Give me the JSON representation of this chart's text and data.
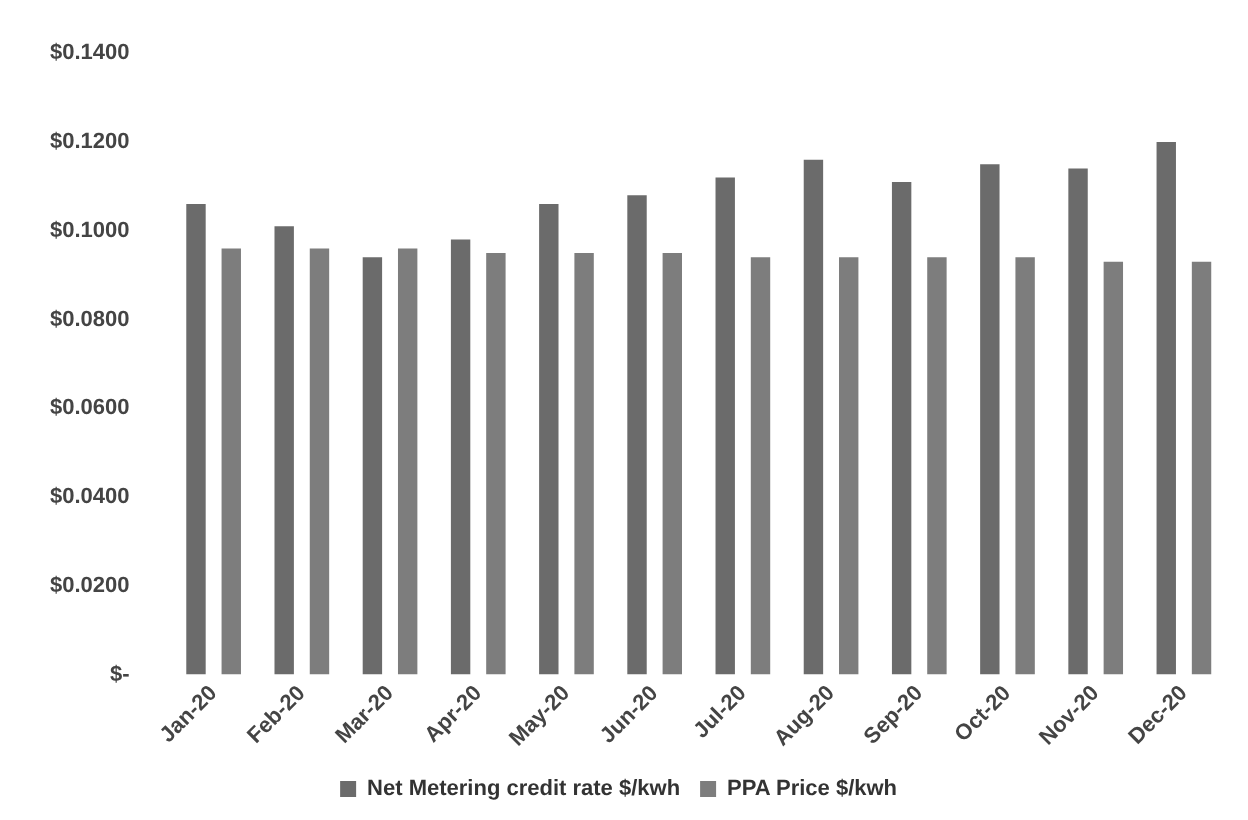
{
  "chart_data": {
    "type": "bar",
    "categories": [
      "Jan-20",
      "Feb-20",
      "Mar-20",
      "Apr-20",
      "May-20",
      "Jun-20",
      "Jul-20",
      "Aug-20",
      "Sep-20",
      "Oct-20",
      "Nov-20",
      "Dec-20"
    ],
    "series": [
      {
        "name": "Net Metering credit rate $/kwh",
        "color": "#6b6b6b",
        "values": [
          0.106,
          0.101,
          0.094,
          0.098,
          0.106,
          0.108,
          0.112,
          0.116,
          0.111,
          0.115,
          0.114,
          0.12
        ]
      },
      {
        "name": "PPA Price $/kwh",
        "color": "#7d7d7d",
        "values": [
          0.096,
          0.096,
          0.096,
          0.095,
          0.095,
          0.095,
          0.094,
          0.094,
          0.094,
          0.094,
          0.093,
          0.093
        ]
      }
    ],
    "ylim": [
      0,
      0.14
    ],
    "yticks": [
      {
        "value": 0,
        "label": "$-"
      },
      {
        "value": 0.02,
        "label": "$0.0200"
      },
      {
        "value": 0.04,
        "label": "$0.0400"
      },
      {
        "value": 0.06,
        "label": "$0.0600"
      },
      {
        "value": 0.08,
        "label": "$0.0800"
      },
      {
        "value": 0.1,
        "label": "$0.1000"
      },
      {
        "value": 0.12,
        "label": "$0.1200"
      },
      {
        "value": 0.14,
        "label": "$0.1400"
      }
    ],
    "grid": false,
    "legend": "bottom"
  }
}
